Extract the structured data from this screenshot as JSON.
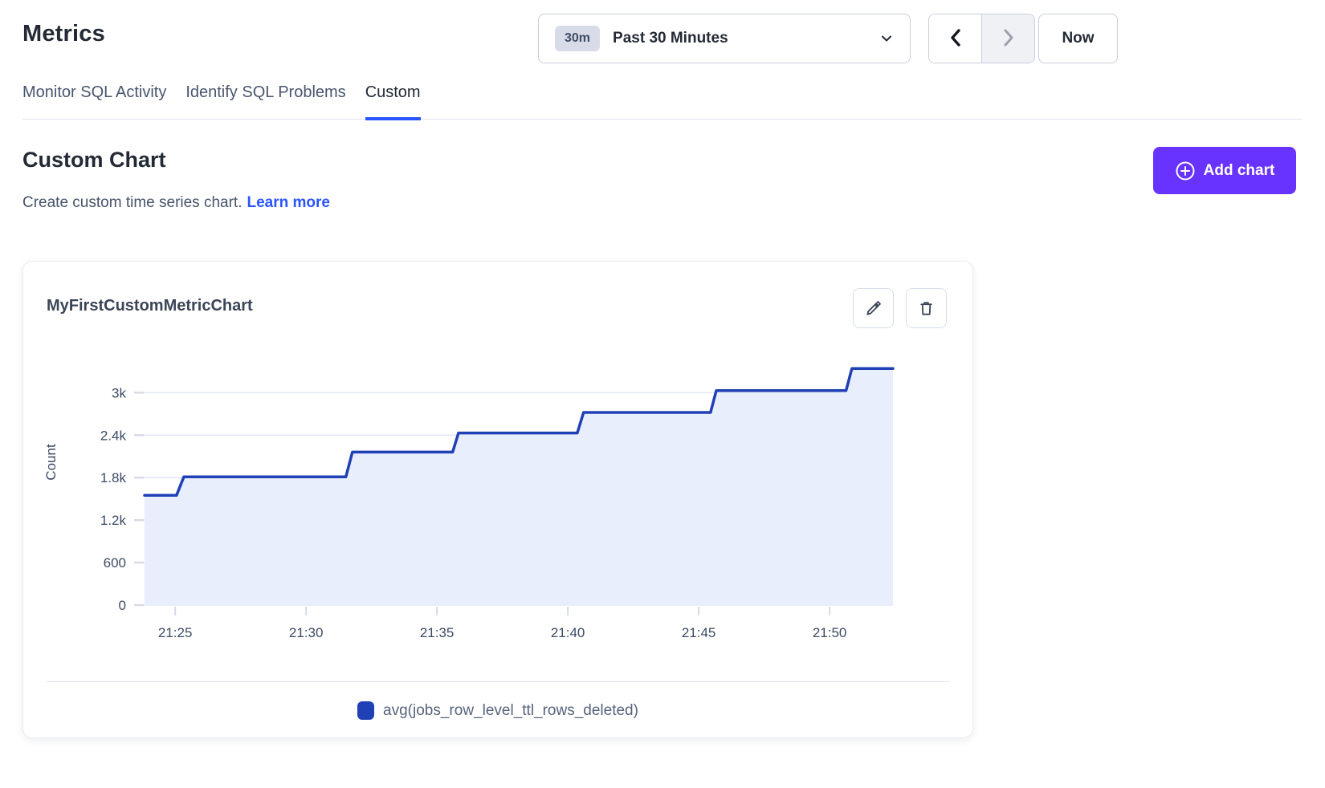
{
  "page": {
    "title": "Metrics"
  },
  "toolbar": {
    "time_range": {
      "badge": "30m",
      "label": "Past 30 Minutes",
      "dropdown_icon": "chevron-down-icon"
    },
    "prev": {
      "icon": "chevron-left-icon",
      "enabled": true
    },
    "next": {
      "icon": "chevron-right-icon",
      "enabled": false
    },
    "now_label": "Now"
  },
  "tabs": [
    {
      "label": "Monitor SQL Activity",
      "active": false
    },
    {
      "label": "Identify SQL Problems",
      "active": false
    },
    {
      "label": "Custom",
      "active": true
    }
  ],
  "section": {
    "heading": "Custom Chart",
    "description": "Create custom time series chart.",
    "link_label": "Learn more",
    "add_button": {
      "label": "Add chart",
      "icon": "plus-circle-icon"
    }
  },
  "card": {
    "title": "MyFirstCustomMetricChart",
    "edit_icon": "pencil-icon",
    "delete_icon": "trash-icon"
  },
  "chart_data": {
    "type": "step-area",
    "series_name": "avg(jobs_row_level_ttl_rows_deleted)",
    "ylabel": "Count",
    "x_range": [
      23.83,
      52.42
    ],
    "y_range": [
      0,
      3650
    ],
    "x_ticks": [
      {
        "t": 25,
        "label": "21:25"
      },
      {
        "t": 30,
        "label": "21:30"
      },
      {
        "t": 35,
        "label": "21:35"
      },
      {
        "t": 40,
        "label": "21:40"
      },
      {
        "t": 45,
        "label": "21:45"
      },
      {
        "t": 50,
        "label": "21:50"
      }
    ],
    "y_ticks": [
      {
        "v": 0,
        "label": "0"
      },
      {
        "v": 600,
        "label": "600"
      },
      {
        "v": 1200,
        "label": "1.2k"
      },
      {
        "v": 1800,
        "label": "1.8k"
      },
      {
        "v": 2400,
        "label": "2.4k"
      },
      {
        "v": 3000,
        "label": "3k"
      }
    ],
    "points": [
      [
        23.83,
        1550
      ],
      [
        25.05,
        1550
      ],
      [
        25.33,
        1810
      ],
      [
        31.52,
        1810
      ],
      [
        31.77,
        2160
      ],
      [
        35.6,
        2160
      ],
      [
        35.82,
        2430
      ],
      [
        40.36,
        2430
      ],
      [
        40.6,
        2720
      ],
      [
        45.45,
        2720
      ],
      [
        45.67,
        3030
      ],
      [
        50.63,
        3030
      ],
      [
        50.85,
        3340
      ],
      [
        52.42,
        3340
      ]
    ],
    "grid_on": true,
    "legend_position": "bottom",
    "line_color": "#2041b5",
    "fill_color": "#e8eefc",
    "grid_color": "#e3e7f0",
    "tick_color": "#d7dbe6",
    "axis_text_color": "#3b4a63"
  },
  "colors": {
    "accent_purple": "#6933ff",
    "accent_blue": "#2955ff",
    "heading_text": "#242a35",
    "muted_text": "#46536b"
  }
}
